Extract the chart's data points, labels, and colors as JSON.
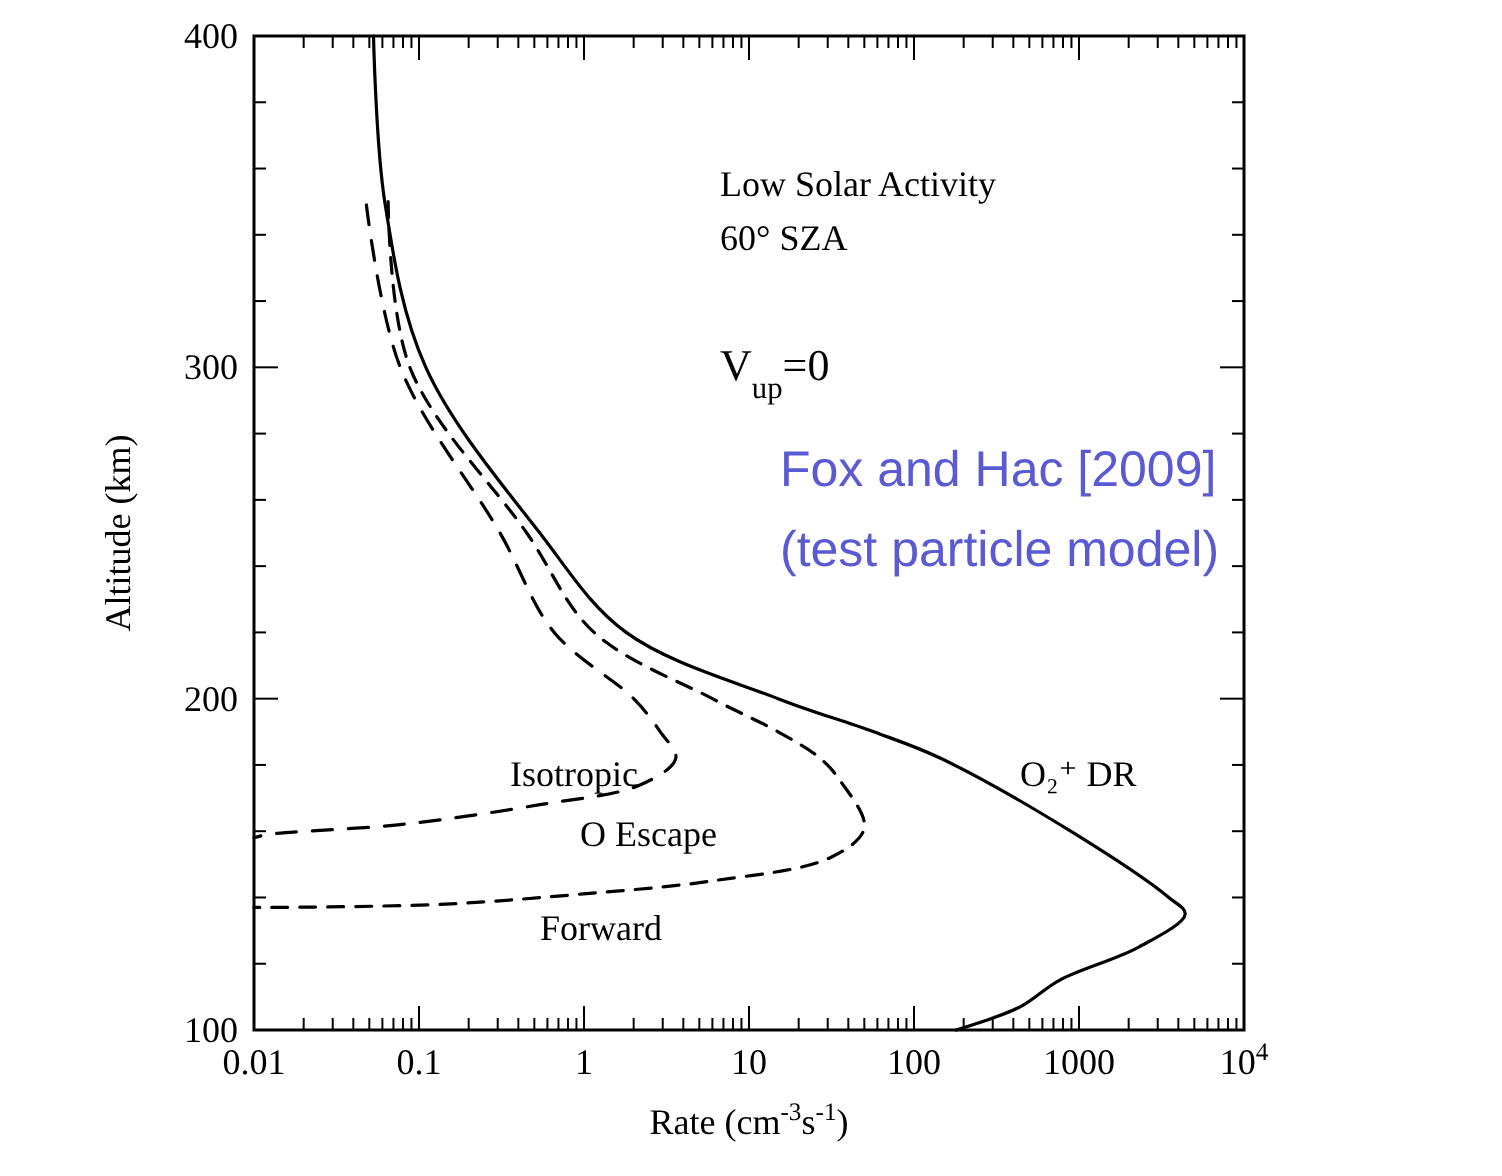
{
  "chart_data": {
    "type": "line",
    "xlabel": "Rate (cm$^{-3}$s$^{-1}$)",
    "ylabel": "Altitude (km)",
    "log": "x",
    "xlim": [
      0.01,
      10000
    ],
    "ylim": [
      100,
      400
    ],
    "xticks": [
      0.01,
      0.1,
      1,
      10,
      100,
      1000,
      {
        "value": 10000,
        "label": "10$^{4}$"
      }
    ],
    "yticks": [
      100,
      200,
      300,
      400
    ],
    "grid": false,
    "series": [
      {
        "name": "O₂⁺ DR",
        "color": "#000000",
        "line_style": "solid",
        "x": [
          0.053,
          0.062,
          0.11,
          0.54,
          1.8,
          15,
          57,
          145,
          890,
          3500,
          4400,
          2300,
          760,
          440,
          180
        ],
        "values": [
          400,
          350,
          300,
          250,
          220,
          200,
          190,
          182,
          160,
          140,
          135,
          125,
          115,
          107,
          100
        ]
      },
      {
        "name": "Isotropic",
        "color": "#000000",
        "line_style": "dashed",
        "x": [
          0.048,
          0.077,
          0.31,
          0.66,
          2.0,
          2.9,
          3.6,
          2.2,
          0.54,
          0.077,
          0.012,
          0.01
        ],
        "values": [
          349,
          300,
          250,
          220,
          200,
          190,
          182,
          174,
          168,
          162,
          159,
          158
        ]
      },
      {
        "name": "Forward",
        "color": "#000000",
        "line_style": "dashed",
        "x": [
          0.065,
          0.088,
          0.45,
          1.15,
          6,
          15,
          27,
          36,
          50,
          31,
          6,
          0.95,
          0.145,
          0.014,
          0.01
        ],
        "values": [
          350,
          300,
          250,
          220,
          200,
          190,
          182,
          175,
          161,
          152,
          145,
          141,
          138,
          137,
          137
        ]
      }
    ],
    "annotations": [
      "Low Solar Activity",
      "60° SZA",
      "V$_{up}$=0",
      "Fox and Hac [2009]",
      "(test particle model)",
      "O Escape"
    ]
  }
}
